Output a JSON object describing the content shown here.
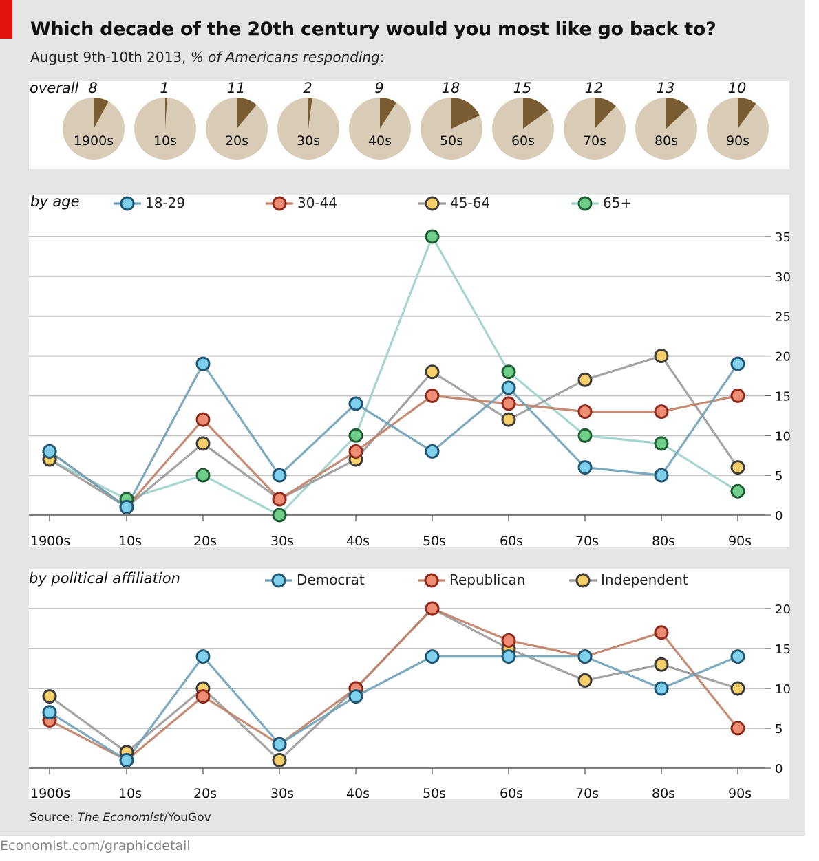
{
  "title": "Which decade of the 20th century would you most like go back to?",
  "subtitle": {
    "main": "August 9th-10th 2013, ",
    "italic": "% of Americans responding",
    "tail": ":"
  },
  "source": {
    "prefix": "Source: ",
    "italic": "The Economist",
    "suffix": "/YouGov"
  },
  "footer": "Economist.com/graphicdetail",
  "colors": {
    "red_tab": "#e3120b",
    "pie_base": "#d8ccb6",
    "pie_slice": "#7a5c33",
    "c18_29": "#6fa1b8",
    "c30_44": "#bf8066",
    "c45_64": "#9a9a9a",
    "c65": "#9bd1cb",
    "dem": "#6fa1b8",
    "rep": "#bf8066",
    "ind": "#9a9a9a"
  },
  "chart_data": [
    {
      "type": "pie",
      "id": "overall",
      "label": "overall",
      "categories": [
        "1900s",
        "10s",
        "20s",
        "30s",
        "40s",
        "50s",
        "60s",
        "70s",
        "80s",
        "90s"
      ],
      "values": [
        8,
        1,
        11,
        2,
        9,
        18,
        15,
        12,
        13,
        10
      ],
      "max": 100
    },
    {
      "type": "line",
      "id": "by_age",
      "label": "by age",
      "categories": [
        "1900s",
        "10s",
        "20s",
        "30s",
        "40s",
        "50s",
        "60s",
        "70s",
        "80s",
        "90s"
      ],
      "ylim": [
        0,
        35
      ],
      "yticks": [
        0,
        5,
        10,
        15,
        20,
        25,
        30,
        35
      ],
      "legend_position": "top",
      "grid": true,
      "series": [
        {
          "name": "18-29",
          "line": "#6fa1b8",
          "fill": "#7fd0ec",
          "edge": "#1e5673",
          "values": [
            8,
            1,
            19,
            5,
            14,
            8,
            16,
            6,
            5,
            19
          ]
        },
        {
          "name": "30-44",
          "line": "#bf8066",
          "fill": "#ee8d74",
          "edge": "#8f2a1a",
          "values": [
            8,
            1,
            12,
            2,
            8,
            15,
            14,
            13,
            13,
            15
          ]
        },
        {
          "name": "45-64",
          "line": "#9a9a9a",
          "fill": "#f6cf6a",
          "edge": "#3b3b3b",
          "values": [
            7,
            1,
            9,
            2,
            7,
            18,
            12,
            17,
            20,
            6
          ]
        },
        {
          "name": "65+",
          "line": "#9bd1cb",
          "fill": "#6fcf8a",
          "edge": "#1f5d34",
          "values": [
            7,
            2,
            5,
            0,
            10,
            35,
            18,
            10,
            9,
            3
          ]
        }
      ]
    },
    {
      "type": "line",
      "id": "by_political",
      "label": "by political affiliation",
      "categories": [
        "1900s",
        "10s",
        "20s",
        "30s",
        "40s",
        "50s",
        "60s",
        "70s",
        "80s",
        "90s"
      ],
      "ylim": [
        0,
        20
      ],
      "yticks": [
        0,
        5,
        10,
        15,
        20
      ],
      "legend_position": "top",
      "grid": true,
      "series": [
        {
          "name": "Independent",
          "line": "#9a9a9a",
          "fill": "#f6cf6a",
          "edge": "#3b3b3b",
          "values": [
            9,
            2,
            10,
            1,
            10,
            20,
            15,
            11,
            13,
            10
          ]
        },
        {
          "name": "Republican",
          "line": "#bf8066",
          "fill": "#ee8d74",
          "edge": "#8f2a1a",
          "values": [
            6,
            1,
            9,
            3,
            10,
            20,
            16,
            14,
            17,
            5
          ]
        },
        {
          "name": "Democrat",
          "line": "#6fa1b8",
          "fill": "#7fd0ec",
          "edge": "#1e5673",
          "values": [
            7,
            1,
            14,
            3,
            9,
            14,
            14,
            14,
            10,
            14
          ]
        }
      ]
    }
  ]
}
